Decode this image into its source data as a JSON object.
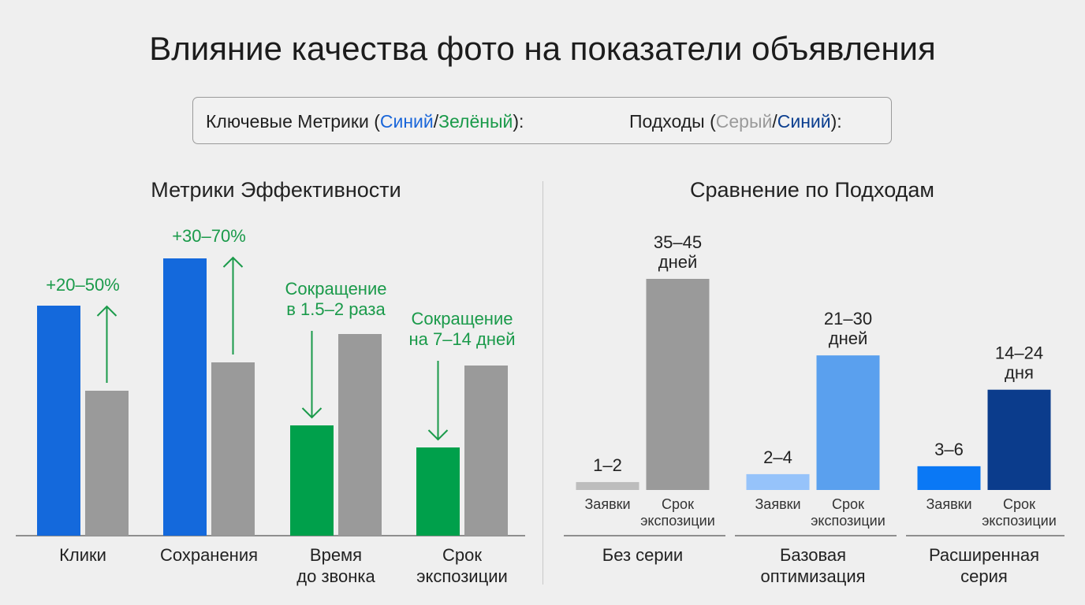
{
  "title": "Влияние качества фото на показатели объявления",
  "legend": {
    "metrics_prefix": "Ключевые Метрики (",
    "metrics_color1": "Синий",
    "metrics_sep": "/",
    "metrics_color2": "Зелёный",
    "metrics_suffix": "):",
    "approaches_prefix": "Подходы (",
    "approaches_color1": "Серый",
    "approaches_sep": "/",
    "approaches_color2": "Синий",
    "approaches_suffix": "):"
  },
  "colors": {
    "blue": "#1469dc",
    "green": "#00a04b",
    "gray": "#9a9a9a",
    "light_gray": "#bdbdbd",
    "light_blue": "#96c3fa",
    "mid_blue": "#5aa0ee",
    "bright_blue": "#0a78f5",
    "navy": "#0b3c8c",
    "annotation_green": "#1a9a4a"
  },
  "chart_data": [
    {
      "type": "bar",
      "title": "Метрики Эффективности",
      "categories": [
        "Клики",
        "Сохранения",
        "Время до звонка",
        "Срок экспозиции"
      ],
      "category_lines": [
        [
          "Клики"
        ],
        [
          "Сохранения"
        ],
        [
          "Время",
          "до звонка"
        ],
        [
          "Срок",
          "экспозиции"
        ]
      ],
      "series": [
        {
          "values": [
            73,
            88,
            35,
            28
          ]
        },
        {
          "values": [
            46,
            55,
            64,
            54
          ]
        }
      ],
      "primary_colors": [
        "blue",
        "blue",
        "green",
        "green"
      ],
      "annotations": [
        {
          "category": "Клики",
          "lines": [
            "+20–50%"
          ],
          "direction": "up"
        },
        {
          "category": "Сохранения",
          "lines": [
            "+30–70%"
          ],
          "direction": "up"
        },
        {
          "category": "Время до звонка",
          "lines": [
            "Сокращение",
            "в 1.5–2 раза"
          ],
          "direction": "down"
        },
        {
          "category": "Срок экспозиции",
          "lines": [
            "Сокращение",
            "на 7–14 дней"
          ],
          "direction": "down"
        }
      ],
      "ylim": [
        0,
        100
      ],
      "grid": false,
      "legend": "none"
    },
    {
      "type": "bar",
      "title": "Сравнение по Подходам",
      "groups": [
        {
          "label_lines": [
            "Без серии"
          ],
          "bars": [
            {
              "label": "Заявки",
              "value": 1.5,
              "value_lines": [
                "1–2"
              ],
              "color": "light_gray"
            },
            {
              "label_lines": [
                "Срок",
                "экспозиции"
              ],
              "value": 40,
              "value_lines": [
                "35–45",
                "дней"
              ],
              "color": "gray"
            }
          ]
        },
        {
          "label_lines": [
            "Базовая",
            "оптимизация"
          ],
          "bars": [
            {
              "label": "Заявки",
              "value": 3,
              "value_lines": [
                "2–4"
              ],
              "color": "light_blue"
            },
            {
              "label_lines": [
                "Срок",
                "экспозиции"
              ],
              "value": 25.5,
              "value_lines": [
                "21–30",
                "дней"
              ],
              "color": "mid_blue"
            }
          ]
        },
        {
          "label_lines": [
            "Расширенная",
            "серия"
          ],
          "bars": [
            {
              "label": "Заявки",
              "value": 4.5,
              "value_lines": [
                "3–6"
              ],
              "color": "bright_blue"
            },
            {
              "label_lines": [
                "Срок",
                "экспозиции"
              ],
              "value": 19,
              "value_lines": [
                "14–24",
                "дня"
              ],
              "color": "navy"
            }
          ]
        }
      ],
      "grid": false,
      "legend": "none"
    }
  ]
}
